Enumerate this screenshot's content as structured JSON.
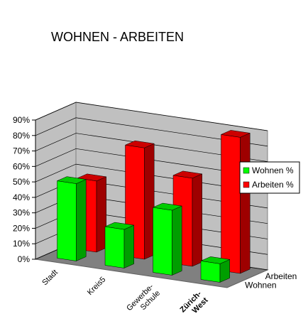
{
  "chart_data": {
    "type": "bar3d",
    "title": "WOHNEN - ARBEITEN",
    "categories": [
      [
        "Stadt"
      ],
      [
        "Kreis5"
      ],
      [
        "Gewerbe-",
        "Schule"
      ],
      [
        "Zürich-",
        "West"
      ]
    ],
    "category_bold": [
      false,
      false,
      false,
      true
    ],
    "series": [
      {
        "name": "Wohnen %",
        "depth_label": "Wohnen",
        "color": "#00ff00",
        "values": [
          50,
          25,
          42,
          12
        ]
      },
      {
        "name": "Arbeiten %",
        "depth_label": "Arbeiten",
        "color": "#ff0000",
        "values": [
          46,
          72,
          57,
          88
        ]
      }
    ],
    "ylim": [
      0,
      90
    ],
    "yticks": [
      {
        "value": 0,
        "label": "0%"
      },
      {
        "value": 10,
        "label": "10%"
      },
      {
        "value": 20,
        "label": "20%"
      },
      {
        "value": 30,
        "label": "30%"
      },
      {
        "value": 40,
        "label": "40%"
      },
      {
        "value": 50,
        "label": "50%"
      },
      {
        "value": 60,
        "label": "60%"
      },
      {
        "value": 70,
        "label": "70%"
      },
      {
        "value": 80,
        "label": "80%"
      },
      {
        "value": 90,
        "label": "90%"
      }
    ],
    "grid": true,
    "legend": "right"
  }
}
